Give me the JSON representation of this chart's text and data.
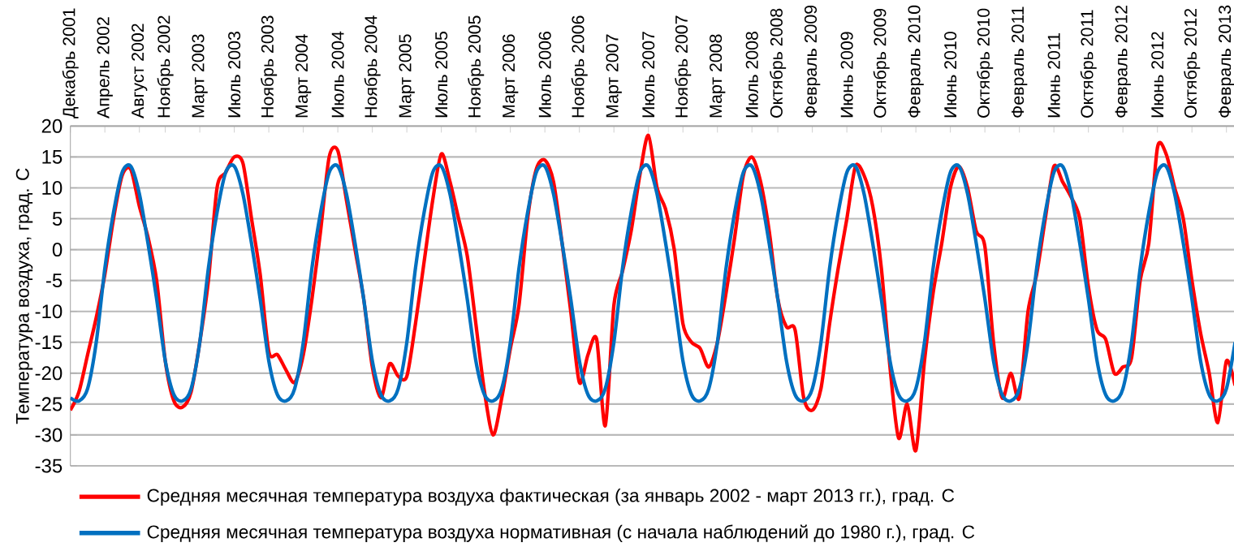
{
  "chart_data": {
    "type": "line",
    "ylabel": "Температура воздуха, град. С",
    "x": [
      "2001-12",
      "2002-01",
      "2002-02",
      "2002-03",
      "2002-04",
      "2002-05",
      "2002-06",
      "2002-07",
      "2002-08",
      "2002-09",
      "2002-10",
      "2002-11",
      "2002-12",
      "2003-01",
      "2003-02",
      "2003-03",
      "2003-04",
      "2003-05",
      "2003-06",
      "2003-07",
      "2003-08",
      "2003-09",
      "2003-10",
      "2003-11",
      "2003-12",
      "2004-01",
      "2004-02",
      "2004-03",
      "2004-04",
      "2004-05",
      "2004-06",
      "2004-07",
      "2004-08",
      "2004-09",
      "2004-10",
      "2004-11",
      "2004-12",
      "2005-01",
      "2005-02",
      "2005-03",
      "2005-04",
      "2005-05",
      "2005-06",
      "2005-07",
      "2005-08",
      "2005-09",
      "2005-10",
      "2005-11",
      "2005-12",
      "2006-01",
      "2006-02",
      "2006-03",
      "2006-04",
      "2006-05",
      "2006-06",
      "2006-07",
      "2006-08",
      "2006-09",
      "2006-10",
      "2006-11",
      "2006-12",
      "2007-01",
      "2007-02",
      "2007-03",
      "2007-04",
      "2007-05",
      "2007-06",
      "2007-07",
      "2007-08",
      "2007-09",
      "2007-10",
      "2007-11",
      "2007-12",
      "2008-01",
      "2008-02",
      "2008-03",
      "2008-04",
      "2008-05",
      "2008-06",
      "2008-07",
      "2008-08",
      "2008-09",
      "2008-10",
      "2008-11",
      "2008-12",
      "2009-01",
      "2009-02",
      "2009-03",
      "2009-04",
      "2009-05",
      "2009-06",
      "2009-07",
      "2009-08",
      "2009-09",
      "2009-10",
      "2009-11",
      "2009-12",
      "2010-01",
      "2010-02",
      "2010-03",
      "2010-04",
      "2010-05",
      "2010-06",
      "2010-07",
      "2010-08",
      "2010-09",
      "2010-10",
      "2010-11",
      "2010-12",
      "2011-01",
      "2011-02",
      "2011-03",
      "2011-04",
      "2011-05",
      "2011-06",
      "2011-07",
      "2011-08",
      "2011-09",
      "2011-10",
      "2011-11",
      "2011-12",
      "2012-01",
      "2012-02",
      "2012-03",
      "2012-04",
      "2012-05",
      "2012-06",
      "2012-07",
      "2012-08",
      "2012-09",
      "2012-10",
      "2012-11",
      "2012-12",
      "2013-01",
      "2013-02",
      "2013-03"
    ],
    "series": [
      {
        "name": "Средняя месячная температура воздуха фактическая (за январь 2002 - март 2013 гг.), град. С",
        "color": "#ff0000",
        "values": [
          -26,
          -23,
          -17,
          -11,
          -4,
          5,
          12,
          13,
          7,
          2,
          -5,
          -18,
          -24.5,
          -25.5,
          -23,
          -15,
          -5,
          10,
          12.5,
          15,
          14,
          5,
          -4,
          -16.5,
          -17,
          -19.5,
          -21.5,
          -17,
          -8,
          3,
          15,
          16,
          8,
          0,
          -8,
          -19,
          -24,
          -18.5,
          -20.5,
          -20.5,
          -12,
          -2,
          8,
          15.5,
          11,
          5,
          -1,
          -12,
          -23,
          -30,
          -24,
          -16,
          -9,
          5,
          13,
          14.5,
          11,
          1,
          -10,
          -21.5,
          -17,
          -14.5,
          -28.5,
          -9,
          -3.5,
          3,
          12,
          18.5,
          10,
          6.5,
          0,
          -12,
          -15,
          -16,
          -19,
          -15,
          -7,
          2,
          12,
          15,
          11,
          3,
          -8,
          -12.5,
          -13,
          -24,
          -26,
          -22.5,
          -12,
          -3,
          5,
          13.5,
          12,
          7,
          -3,
          -19,
          -30.5,
          -25,
          -32.5,
          -18,
          -7,
          1,
          10,
          13.5,
          10,
          3,
          0.5,
          -15,
          -24,
          -20,
          -24,
          -10,
          -4,
          5,
          13.5,
          11,
          8.5,
          5,
          -6,
          -13,
          -14.5,
          -20,
          -19,
          -17.5,
          -5,
          1,
          16.5,
          15.5,
          10,
          5,
          -5,
          -13.5,
          -20,
          -28,
          -18,
          -22
        ]
      },
      {
        "name": "Средняя месячная температура воздуха нормативная (с начала наблюдений до 1980 г.), град. С",
        "color": "#0070c0",
        "values": [
          -24,
          -24.5,
          -22.5,
          -15,
          -3,
          6,
          12.5,
          13.5,
          9,
          1,
          -8,
          -18,
          -23.5,
          -24.5,
          -22.5,
          -15,
          -3,
          6,
          12.5,
          13.5,
          9,
          1,
          -8,
          -18,
          -23.5,
          -24.5,
          -22.5,
          -15,
          -3,
          6,
          12.5,
          13.5,
          9,
          1,
          -8,
          -18,
          -23.5,
          -24.5,
          -22.5,
          -15,
          -3,
          6,
          12.5,
          13.5,
          9,
          1,
          -8,
          -18,
          -23.5,
          -24.5,
          -22.5,
          -15,
          -3,
          6,
          12.5,
          13.5,
          9,
          1,
          -8,
          -18,
          -23.5,
          -24.5,
          -22.5,
          -15,
          -3,
          6,
          12.5,
          13.5,
          9,
          1,
          -8,
          -18,
          -23.5,
          -24.5,
          -22.5,
          -15,
          -3,
          6,
          12.5,
          13.5,
          9,
          1,
          -8,
          -18,
          -23.5,
          -24.5,
          -22.5,
          -15,
          -3,
          6,
          12.5,
          13.5,
          9,
          1,
          -8,
          -18,
          -23.5,
          -24.5,
          -22.5,
          -15,
          -3,
          6,
          12.5,
          13.5,
          9,
          1,
          -8,
          -18,
          -23.5,
          -24.5,
          -22.5,
          -15,
          -3,
          6,
          12.5,
          13.5,
          9,
          1,
          -8,
          -18,
          -23.5,
          -24.5,
          -22.5,
          -15,
          -3,
          6,
          12.5,
          13.5,
          9,
          1,
          -8,
          -18,
          -23.5,
          -24.5,
          -22.5,
          -15
        ]
      }
    ],
    "xlim": [
      "2001-12",
      "2013-03"
    ],
    "xticks": [
      {
        "value": "2001-12",
        "label": "Декабрь 2001"
      },
      {
        "value": "2002-04",
        "label": "Апрель 2002"
      },
      {
        "value": "2002-08",
        "label": "Август 2002"
      },
      {
        "value": "2002-11",
        "label": "Ноябрь 2002"
      },
      {
        "value": "2003-03",
        "label": "Март 2003"
      },
      {
        "value": "2003-07",
        "label": "Июль 2003"
      },
      {
        "value": "2003-11",
        "label": "Ноябрь 2003"
      },
      {
        "value": "2004-03",
        "label": "Март 2004"
      },
      {
        "value": "2004-07",
        "label": "Июль 2004"
      },
      {
        "value": "2004-11",
        "label": "Ноябрь 2004"
      },
      {
        "value": "2005-03",
        "label": "Март 2005"
      },
      {
        "value": "2005-07",
        "label": "Июль 2005"
      },
      {
        "value": "2005-11",
        "label": "Ноябрь 2005"
      },
      {
        "value": "2006-03",
        "label": "Март 2006"
      },
      {
        "value": "2006-07",
        "label": "Июль 2006"
      },
      {
        "value": "2006-11",
        "label": "Ноябрь 2006"
      },
      {
        "value": "2007-03",
        "label": "Март 2007"
      },
      {
        "value": "2007-07",
        "label": "Июль 2007"
      },
      {
        "value": "2007-11",
        "label": "Ноябрь 2007"
      },
      {
        "value": "2008-03",
        "label": "Март 2008"
      },
      {
        "value": "2008-07",
        "label": "Июль 2008"
      },
      {
        "value": "2008-10",
        "label": "Октябрь 2008"
      },
      {
        "value": "2009-02",
        "label": "Февраль 2009"
      },
      {
        "value": "2009-06",
        "label": "Июнь 2009"
      },
      {
        "value": "2009-10",
        "label": "Октябрь 2009"
      },
      {
        "value": "2010-02",
        "label": "Февраль 2010"
      },
      {
        "value": "2010-06",
        "label": "Июнь 2010"
      },
      {
        "value": "2010-10",
        "label": "Октябрь 2010"
      },
      {
        "value": "2011-02",
        "label": "Февраль 2011"
      },
      {
        "value": "2011-06",
        "label": "Июнь 2011"
      },
      {
        "value": "2011-10",
        "label": "Октябрь 2011"
      },
      {
        "value": "2012-02",
        "label": "Февраль 2012"
      },
      {
        "value": "2012-06",
        "label": "Июнь 2012"
      },
      {
        "value": "2012-10",
        "label": "Октябрь 2012"
      },
      {
        "value": "2013-02",
        "label": "Февраль 2013"
      }
    ],
    "ylim": [
      -35,
      20
    ],
    "yticks": [
      -35,
      -30,
      -25,
      -20,
      -15,
      -10,
      -5,
      0,
      5,
      10,
      15,
      20
    ],
    "grid": "y",
    "legend": "bottom"
  }
}
